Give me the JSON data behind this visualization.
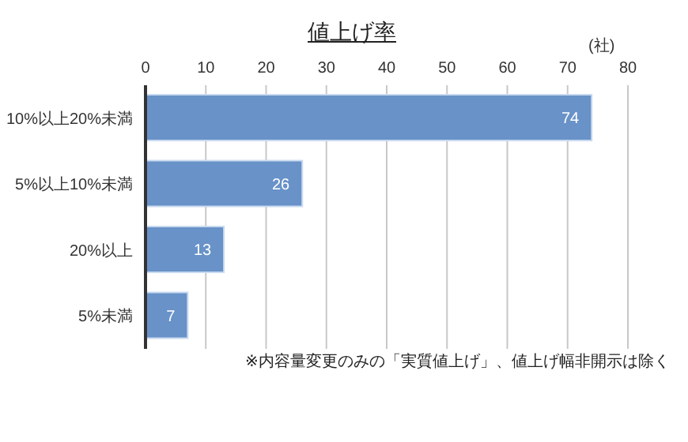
{
  "chart_data": {
    "type": "bar",
    "orientation": "horizontal",
    "title": "値上げ率",
    "xlabel": "(社)",
    "categories": [
      "10%以上20%未満",
      "5%以上10%未満",
      "20%以上",
      "5%未満"
    ],
    "values": [
      74,
      26,
      13,
      7
    ],
    "color": "#6892c8",
    "xlim": [
      0,
      80
    ],
    "xticks": [
      0,
      10,
      20,
      30,
      40,
      50,
      60,
      70,
      80
    ],
    "grid": "x",
    "data_labels": true,
    "annotations": [
      "※内容量変更のみの「実質値上げ」、値上げ幅非開示は除く"
    ]
  }
}
